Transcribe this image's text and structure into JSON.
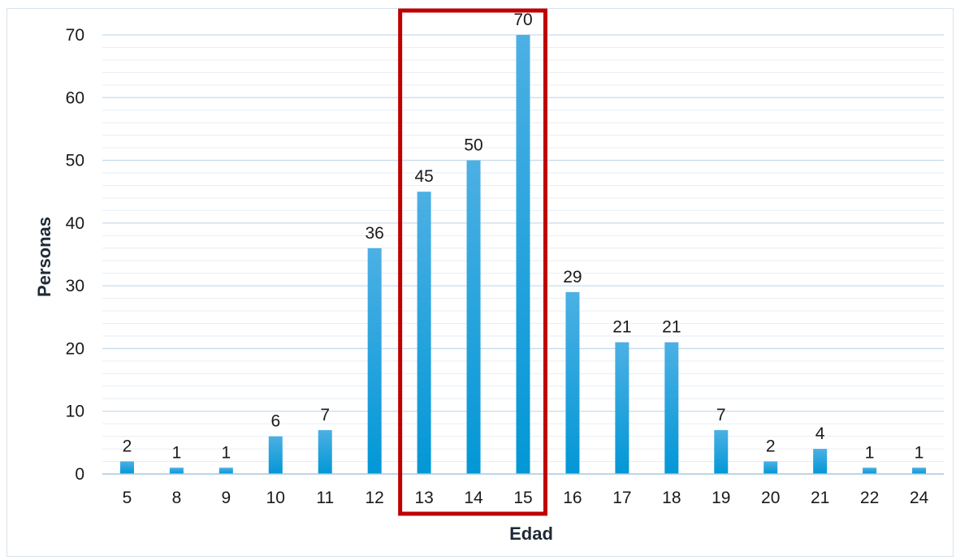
{
  "chart_data": {
    "type": "bar",
    "categories": [
      "5",
      "8",
      "9",
      "10",
      "11",
      "12",
      "13",
      "14",
      "15",
      "16",
      "17",
      "18",
      "19",
      "20",
      "21",
      "22",
      "24"
    ],
    "values": [
      2,
      1,
      1,
      6,
      7,
      36,
      45,
      50,
      70,
      29,
      21,
      21,
      7,
      2,
      4,
      1,
      1
    ],
    "xlabel": "Edad",
    "ylabel": "Personas",
    "ylim": [
      0,
      70
    ],
    "yticks": [
      0,
      10,
      20,
      30,
      40,
      50,
      60,
      70
    ],
    "grid": true,
    "highlight_categories": [
      "13",
      "14",
      "15"
    ],
    "colors": {
      "bar_top": "#4cb0e4",
      "bar_bottom": "#0297d6",
      "highlight_box": "#c00000",
      "grid_major": "#c9dcec",
      "grid_minor": "#e6eef5",
      "axis": "#a9c6de"
    }
  }
}
